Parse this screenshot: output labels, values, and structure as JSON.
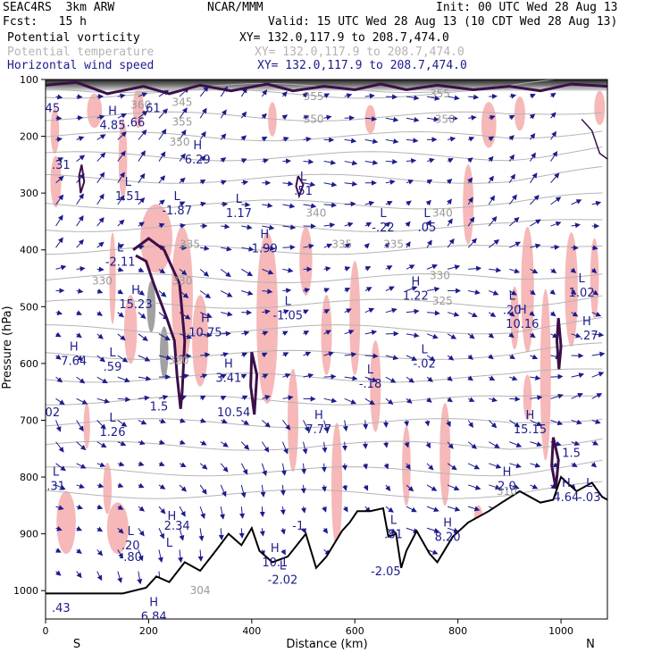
{
  "header": {
    "model": "SEAC4RS  3km ARW",
    "org": "NCAR/MMM",
    "init": "Init: 00 UTC Wed 28 Aug 13",
    "fcst": "Fcst:   15 h",
    "valid": "Valid: 15 UTC Wed 28 Aug 13 (10 CDT Wed 28 Aug 13)",
    "fields": [
      {
        "name": "Potential vorticity",
        "xy": "XY= 132.0,117.9 to 208.7,474.0",
        "color": "#000000"
      },
      {
        "name": "Potential temperature",
        "xy": "XY= 132.0,117.9 to 208.7,474.0",
        "color": "#b4b4b4"
      },
      {
        "name": "Horizontal wind speed",
        "xy": "XY= 132.0,117.9 to 208.7,474.0",
        "color": "#1c1c8c"
      }
    ]
  },
  "chart_data": {
    "type": "cross-section",
    "xlabel": "Distance (km)",
    "ylabel": "Pressure (hPa)",
    "xlim": [
      0,
      1090
    ],
    "ylim": [
      1050,
      100
    ],
    "x_ticks": [
      0,
      200,
      400,
      600,
      800,
      1000
    ],
    "y_ticks": [
      100,
      200,
      300,
      400,
      500,
      600,
      700,
      800,
      900,
      1000
    ],
    "x_end_labels": {
      "left": "S",
      "right": "N"
    },
    "colors": {
      "pv_fill": "#f6b8b8",
      "pv_contour": "#3c0f4a",
      "wind": "#1c1c8c",
      "theta": "#b4b4b4",
      "terrain": "#000000"
    },
    "theta_labels": [
      {
        "x": 185,
        "p": 145,
        "t": "360"
      },
      {
        "x": 265,
        "p": 140,
        "t": "345"
      },
      {
        "x": 265,
        "p": 175,
        "t": "355"
      },
      {
        "x": 260,
        "p": 210,
        "t": "350"
      },
      {
        "x": 520,
        "p": 170,
        "t": "350"
      },
      {
        "x": 520,
        "p": 130,
        "t": "355"
      },
      {
        "x": 775,
        "p": 170,
        "t": "350"
      },
      {
        "x": 765,
        "p": 125,
        "t": "355"
      },
      {
        "x": 770,
        "p": 335,
        "t": "340"
      },
      {
        "x": 770,
        "p": 490,
        "t": "325"
      },
      {
        "x": 575,
        "p": 390,
        "t": "335"
      },
      {
        "x": 525,
        "p": 335,
        "t": "340"
      },
      {
        "x": 765,
        "p": 445,
        "t": "330"
      },
      {
        "x": 675,
        "p": 390,
        "t": "335"
      },
      {
        "x": 110,
        "p": 455,
        "t": "330"
      },
      {
        "x": 265,
        "p": 455,
        "t": "330"
      },
      {
        "x": 280,
        "p": 390,
        "t": "335"
      },
      {
        "x": 258,
        "p": 595,
        "t": "320"
      },
      {
        "x": 300,
        "p": 1000,
        "t": "304"
      },
      {
        "x": 895,
        "p": 825,
        "t": "310"
      }
    ],
    "extrema": [
      {
        "x": 10,
        "p": 145,
        "k": "",
        "v": ".45"
      },
      {
        "x": 205,
        "p": 145,
        "k": "",
        "v": ".61"
      },
      {
        "x": 130,
        "p": 175,
        "k": "H",
        "v": "4.85"
      },
      {
        "x": 175,
        "p": 170,
        "k": "",
        "v": ".66"
      },
      {
        "x": 30,
        "p": 245,
        "k": "",
        "v": ".31"
      },
      {
        "x": 295,
        "p": 235,
        "k": "H",
        "v": "6.29"
      },
      {
        "x": 160,
        "p": 300,
        "k": "L",
        "v": "1.51"
      },
      {
        "x": 255,
        "p": 325,
        "k": "L",
        "v": "-1.87"
      },
      {
        "x": 375,
        "p": 330,
        "k": "L",
        "v": "1.17"
      },
      {
        "x": 500,
        "p": 290,
        "k": "L",
        "v": ".51"
      },
      {
        "x": 655,
        "p": 355,
        "k": "L",
        "v": "-.22"
      },
      {
        "x": 740,
        "p": 355,
        "k": "L",
        "v": ".05"
      },
      {
        "x": 425,
        "p": 392,
        "k": "H",
        "v": "1.99"
      },
      {
        "x": 145,
        "p": 415,
        "k": "L",
        "v": "-2.11"
      },
      {
        "x": 175,
        "p": 490,
        "k": "H",
        "v": "15.23"
      },
      {
        "x": 718,
        "p": 475,
        "k": "H",
        "v": "1.22"
      },
      {
        "x": 1040,
        "p": 470,
        "k": "L",
        "v": "1.02"
      },
      {
        "x": 470,
        "p": 510,
        "k": "L",
        "v": "-1.05"
      },
      {
        "x": 905,
        "p": 500,
        "k": "L",
        "v": ".20"
      },
      {
        "x": 925,
        "p": 525,
        "k": "H",
        "v": "10.16"
      },
      {
        "x": 1050,
        "p": 545,
        "k": "H",
        "v": "-.27"
      },
      {
        "x": 310,
        "p": 540,
        "k": "H",
        "v": "10.75"
      },
      {
        "x": 55,
        "p": 590,
        "k": "H",
        "v": "7.64"
      },
      {
        "x": 130,
        "p": 600,
        "k": "L",
        "v": ".59"
      },
      {
        "x": 735,
        "p": 595,
        "k": "L",
        "v": "-.02"
      },
      {
        "x": 355,
        "p": 620,
        "k": "H",
        "v": "3.41"
      },
      {
        "x": 630,
        "p": 630,
        "k": "L",
        "v": "-.18"
      },
      {
        "x": 220,
        "p": 670,
        "k": "",
        "v": "1.5"
      },
      {
        "x": 10,
        "p": 680,
        "k": "",
        "v": ".02"
      },
      {
        "x": 365,
        "p": 680,
        "k": "",
        "v": "10.54"
      },
      {
        "x": 530,
        "p": 710,
        "k": "H",
        "v": "7.77"
      },
      {
        "x": 130,
        "p": 715,
        "k": "L",
        "v": "1.26"
      },
      {
        "x": 940,
        "p": 710,
        "k": "H",
        "v": "15.15"
      },
      {
        "x": 1020,
        "p": 752,
        "k": "",
        "v": "1.5"
      },
      {
        "x": 20,
        "p": 810,
        "k": "L",
        "v": ".31"
      },
      {
        "x": 895,
        "p": 810,
        "k": "H",
        "v": "2.0"
      },
      {
        "x": 1010,
        "p": 830,
        "k": "H",
        "v": "4.64"
      },
      {
        "x": 1055,
        "p": 830,
        "k": "L",
        "v": "-.03"
      },
      {
        "x": 255,
        "p": 880,
        "k": "",
        "v": "2.34"
      },
      {
        "x": 245,
        "p": 888,
        "k": "H",
        "v": ""
      },
      {
        "x": 240,
        "p": 935,
        "k": "L",
        "v": ""
      },
      {
        "x": 165,
        "p": 915,
        "k": "L",
        "v": ".20"
      },
      {
        "x": 165,
        "p": 935,
        "k": "",
        "v": "-.80"
      },
      {
        "x": 490,
        "p": 880,
        "k": "",
        "v": "-1"
      },
      {
        "x": 675,
        "p": 895,
        "k": "L",
        "v": ".81"
      },
      {
        "x": 780,
        "p": 900,
        "k": "H",
        "v": "8.20"
      },
      {
        "x": 445,
        "p": 945,
        "k": "H",
        "v": "10.1"
      },
      {
        "x": 460,
        "p": 975,
        "k": "L",
        "v": "-2.02"
      },
      {
        "x": 660,
        "p": 960,
        "k": "",
        "v": "-2.05"
      },
      {
        "x": 30,
        "p": 1025,
        "k": "",
        "v": ".43"
      },
      {
        "x": 210,
        "p": 1040,
        "k": "H",
        "v": "6.84"
      }
    ]
  }
}
